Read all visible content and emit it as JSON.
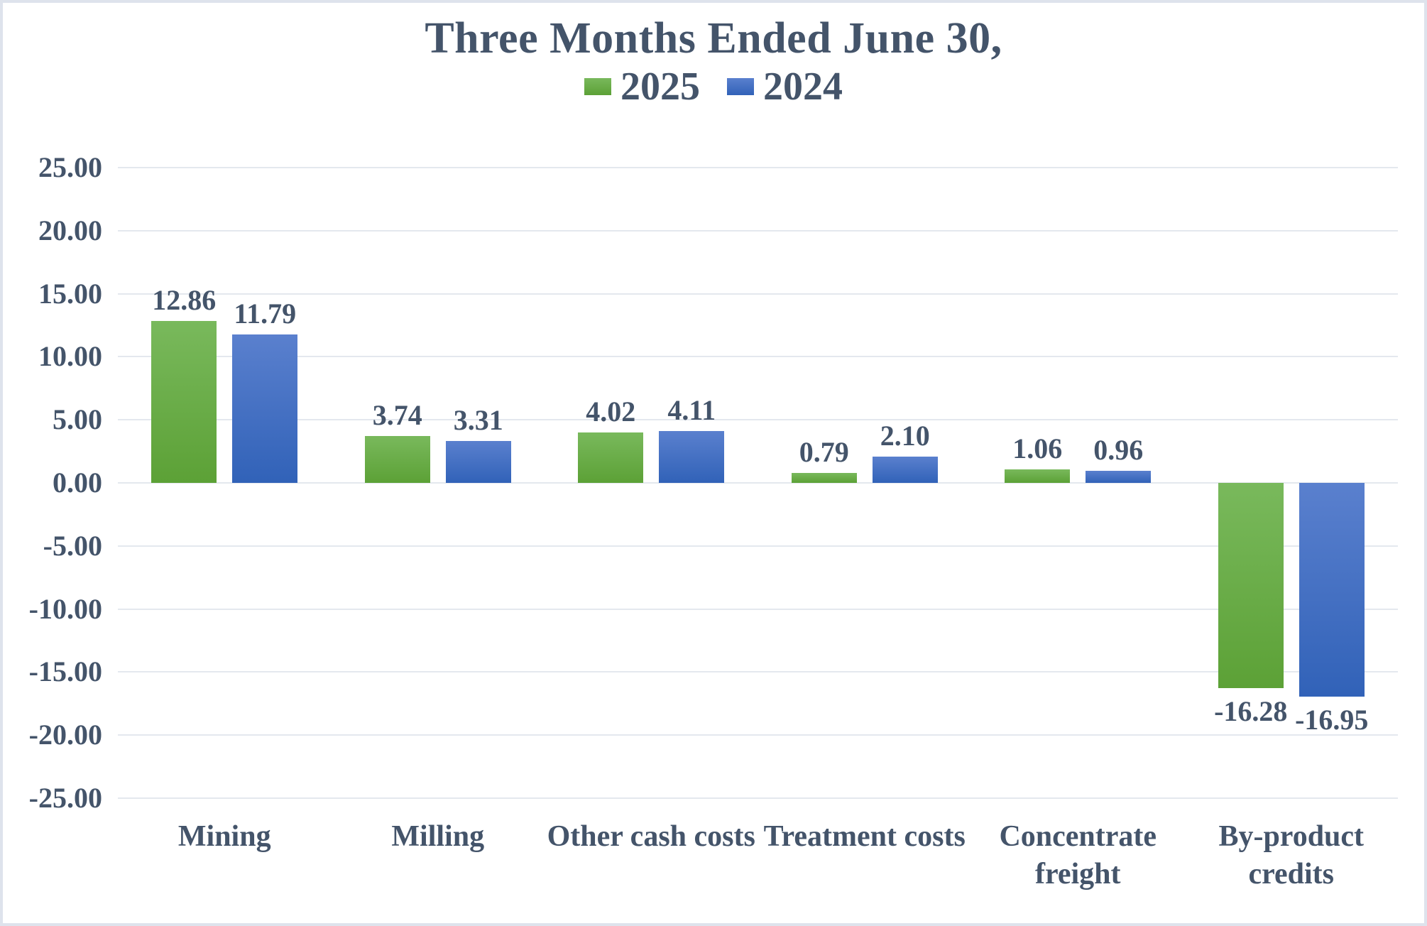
{
  "page": {
    "background": "#ffffff",
    "border_color": "#dee3ec",
    "text_color": "#44546A"
  },
  "chart_data": {
    "type": "bar",
    "title": "Three Months Ended June 30,",
    "categories": [
      "Mining",
      "Milling",
      "Other cash costs",
      "Treatment costs",
      "Concentrate\nfreight",
      "By-product credits"
    ],
    "series": [
      {
        "name": "2025",
        "color_top": "#79b95c",
        "color_bottom": "#5ca136",
        "values": [
          12.86,
          3.74,
          4.02,
          0.79,
          1.06,
          -16.28
        ],
        "labels": [
          "12.86",
          "3.74",
          "4.02",
          "0.79",
          "1.06",
          "-16.28"
        ]
      },
      {
        "name": "2024",
        "color_top": "#5a80ce",
        "color_bottom": "#3162b8",
        "values": [
          11.79,
          3.31,
          4.11,
          2.1,
          0.96,
          -16.95
        ],
        "labels": [
          "11.79",
          "3.31",
          "4.11",
          "2.10",
          "0.96",
          "-16.95"
        ]
      }
    ],
    "y_axis": {
      "min": -25,
      "max": 25,
      "step": 5,
      "tick_labels": [
        "25.00",
        "20.00",
        "15.00",
        "10.00",
        "5.00",
        "0.00",
        "-5.00",
        "-10.00",
        "-15.00",
        "-20.00",
        "-25.00"
      ]
    },
    "grid": true,
    "gridline_color": "#e4e8ee",
    "legend_position": "top-center",
    "text_color": "#44546A"
  }
}
